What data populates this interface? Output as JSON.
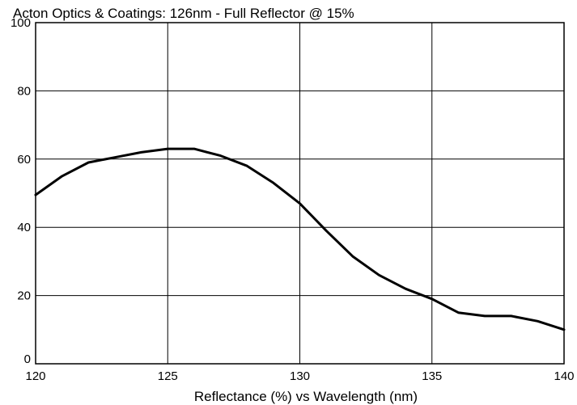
{
  "chart_data": {
    "type": "line",
    "title": "Acton Optics & Coatings:  126nm - Full Reflector @ 15%",
    "xlabel": "Reflectance (%)  vs  Wavelength (nm)",
    "ylabel": "",
    "xlim": [
      120,
      140
    ],
    "ylim": [
      0,
      100
    ],
    "x_ticks": [
      120,
      125,
      130,
      135,
      140
    ],
    "y_ticks": [
      0,
      20,
      40,
      60,
      80,
      100
    ],
    "grid": true,
    "legend": "none",
    "series": [
      {
        "color": "#000000",
        "x": [
          120,
          121,
          122,
          123,
          124,
          125,
          126,
          127,
          128,
          129,
          130,
          131,
          132,
          133,
          134,
          135,
          136,
          137,
          138,
          139,
          140
        ],
        "y": [
          49.5,
          55,
          59,
          60.5,
          62,
          63,
          63,
          61,
          58,
          53,
          47,
          39,
          31.5,
          26,
          22,
          19,
          15,
          14,
          14,
          12.5,
          10
        ]
      }
    ]
  }
}
